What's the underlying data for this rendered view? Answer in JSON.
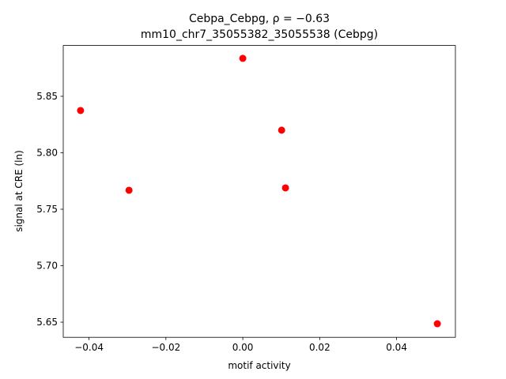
{
  "chart_data": {
    "type": "scatter",
    "title": "Cebpa_Cebpg, ρ = −0.63",
    "subtitle": "mm10_chr7_35055382_35055538 (Cebpg)",
    "x_label": "motif activity",
    "y_label": "signal at CRE (ln)",
    "x": [
      -0.0422,
      -0.0296,
      0.0,
      0.0101,
      0.0111,
      0.0506
    ],
    "series": [
      {
        "color": "#ff0000",
        "values": [
          5.8374,
          5.7668,
          5.8836,
          5.82,
          5.7689,
          5.6486
        ]
      }
    ],
    "xlim": [
      -0.0467,
      0.0553
    ],
    "ylim": [
      5.6366,
      5.895
    ],
    "xticks": [
      {
        "value": -0.04,
        "label": "−0.04"
      },
      {
        "value": -0.02,
        "label": "−0.02"
      },
      {
        "value": 0,
        "label": "0.00"
      },
      {
        "value": 0.02,
        "label": "0.02"
      },
      {
        "value": 0.04,
        "label": "0.04"
      }
    ],
    "yticks": [
      {
        "value": 5.65,
        "label": "5.65"
      },
      {
        "value": 5.7,
        "label": "5.70"
      },
      {
        "value": 5.75,
        "label": "5.75"
      },
      {
        "value": 5.8,
        "label": "5.80"
      },
      {
        "value": 5.85,
        "label": "5.85"
      }
    ],
    "grid": false
  }
}
